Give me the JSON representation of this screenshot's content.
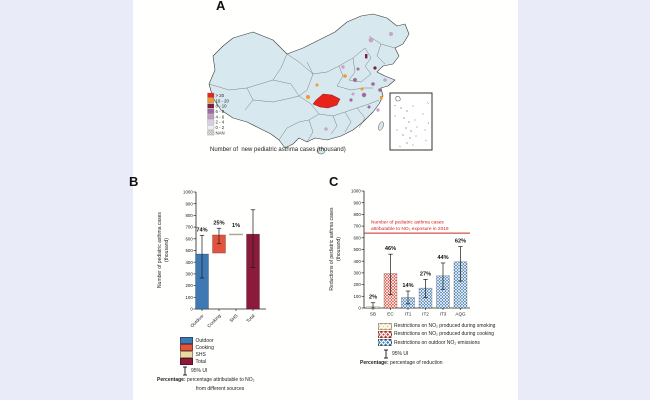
{
  "colors": {
    "page_bg": "#e9ebf9",
    "sheet_bg": "#fffffe",
    "outdoor_blue": "#3e79b3",
    "cooking_red": "#e2543c",
    "shs_tan": "#ecd9a2",
    "total_maroon": "#8c1b3b",
    "map_red": "#e8231a",
    "annotation_red": "#cf2424",
    "province_fill": "#d7e8ee"
  },
  "panel_a": {
    "label": "A",
    "caption": "Number of  new pediatric asthma cases (thousand)",
    "legend": [
      {
        "label": "> 20",
        "color": "#e8231a"
      },
      {
        "label": "10 - 20",
        "color": "#f2992e"
      },
      {
        "label": "8 - 10",
        "color": "#7b1f3e"
      },
      {
        "label": "6 - 8",
        "color": "#9e6b9e"
      },
      {
        "label": "4 - 6",
        "color": "#bf9ec4"
      },
      {
        "label": "2 - 4",
        "color": "#dccde2"
      },
      {
        "label": "0 - 2",
        "color": "#e9f1f4"
      },
      {
        "label": "NAN",
        "color": "nan"
      }
    ]
  },
  "panel_b": {
    "label": "B",
    "legend": [
      {
        "label": "Outdoor",
        "color": "#3e79b3"
      },
      {
        "label": "Cooking",
        "color": "#e2543c"
      },
      {
        "label": "SHS",
        "color": "#ecd9a2"
      },
      {
        "label": "Total",
        "color": "#8c1b3b"
      }
    ],
    "ci_label": "95% UI",
    "note_bold": "Percentage:",
    "note_text": " percentage attributable to NO₂",
    "note_line2": "from different sources"
  },
  "panel_c": {
    "label": "C",
    "legend": [
      {
        "label": "Restrictions on NO₂ produced during smoking",
        "style": "tan",
        "color": "#ecd9a2"
      },
      {
        "label": "Restrictions on NO₂ produced during cooking",
        "style": "red",
        "color": "#d94434"
      },
      {
        "label": "Restrictions on outdoor NO₂ emissions",
        "style": "blue",
        "color": "#3e79b3"
      }
    ],
    "ci_label": "95% UI",
    "note_bold": "Percentage:",
    "note_text": " percentage of reduction"
  },
  "chart_data": [
    {
      "panel": "B",
      "type": "bar",
      "title": "",
      "ylabel_line1": "Number of pediatric asthma cases",
      "ylabel_line2": "(thousand)",
      "ylim": [
        0,
        1000
      ],
      "ytick_step": 100,
      "grid": false,
      "categories": [
        "Outdoor",
        "Cooking",
        "SHS",
        "Total"
      ],
      "bars": [
        {
          "category": "Outdoor",
          "from": 0,
          "to": 470,
          "pct": "74%",
          "ci": [
            265,
            630
          ],
          "color": "#3e79b3"
        },
        {
          "category": "Cooking",
          "from": 478,
          "to": 633,
          "pct": "25%",
          "ci": [
            558,
            690
          ],
          "color": "#e2543c"
        },
        {
          "category": "SHS",
          "from": 633,
          "to": 641,
          "pct": "1%",
          "ci": null,
          "color": "#ecd9a2"
        },
        {
          "category": "Total",
          "from": 0,
          "to": 640,
          "pct": null,
          "ci": [
            355,
            848
          ],
          "color": "#8c1b3b"
        }
      ]
    },
    {
      "panel": "C",
      "type": "bar",
      "title": "",
      "ylabel_line1": "Reductions of pediatric asthma cases",
      "ylabel_line2": "(thousand)",
      "ylim": [
        0,
        1000
      ],
      "ytick_step": 100,
      "grid": false,
      "categories": [
        "SB",
        "EC",
        "IT1",
        "IT2",
        "IT3",
        "AQG"
      ],
      "bars": [
        {
          "category": "SB",
          "from": 0,
          "to": 10,
          "pct": "2%",
          "ci": [
            0,
            45
          ],
          "style": "tan"
        },
        {
          "category": "EC",
          "from": 0,
          "to": 295,
          "pct": "46%",
          "ci": [
            115,
            460
          ],
          "style": "red"
        },
        {
          "category": "IT1",
          "from": 0,
          "to": 90,
          "pct": "14%",
          "ci": [
            35,
            145
          ],
          "style": "blue"
        },
        {
          "category": "IT2",
          "from": 0,
          "to": 170,
          "pct": "27%",
          "ci": [
            90,
            245
          ],
          "style": "blue"
        },
        {
          "category": "IT3",
          "from": 0,
          "to": 275,
          "pct": "44%",
          "ci": [
            160,
            385
          ],
          "style": "blue"
        },
        {
          "category": "AQG",
          "from": 0,
          "to": 395,
          "pct": "62%",
          "ci": [
            230,
            525
          ],
          "style": "blue"
        }
      ],
      "reference_line": {
        "value": 640,
        "color": "#cf2424",
        "label_line1": "Number of pediatric asthma cases",
        "label_line2": "attributable to NO₂ exposure in 2019"
      }
    }
  ]
}
